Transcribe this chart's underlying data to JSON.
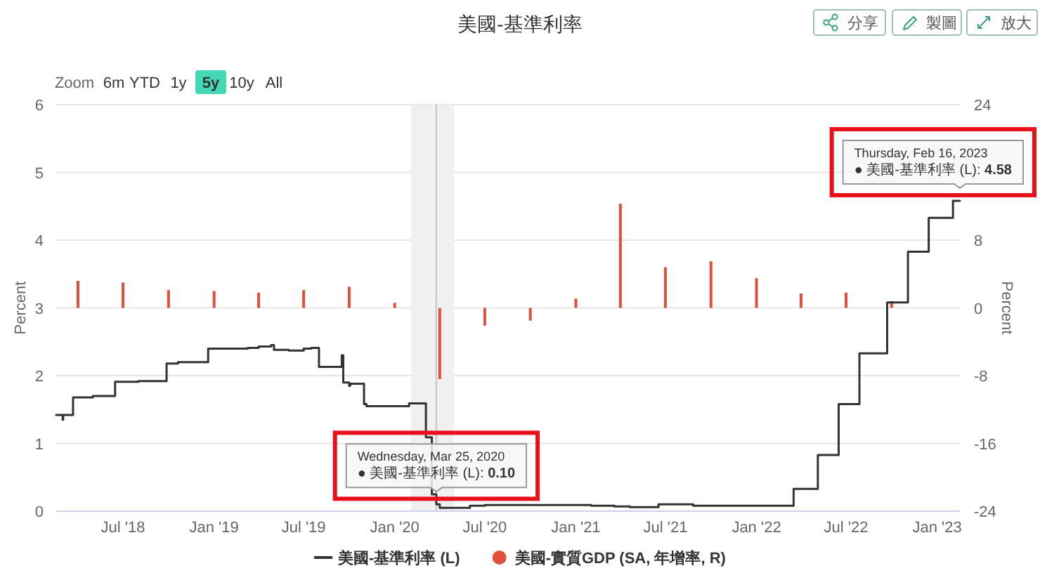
{
  "chart_data": {
    "type": "step",
    "title": "美國-基準利率",
    "ylabel": "Percent",
    "y2label": "Percent",
    "annotations": [
      {
        "text": "Wednesday, Mar 25, 2020\n● 美國-基準利率 (L): 0.10",
        "x": "2020-03-25",
        "y": 0.1
      },
      {
        "text": "Thursday, Feb 16, 2023\n● 美國-基準利率 (L): 4.58",
        "x": "2023-02-16",
        "y": 4.58
      },
      "Zoom",
      "6m",
      "YTD",
      "1y",
      "5y",
      "10y",
      "All",
      "分享",
      "製圖",
      "放大"
    ],
    "xlim": [
      "2018-02-16",
      "2023-02-16"
    ],
    "xticks": [
      {
        "value": "2018-07-01",
        "label": "Jul '18"
      },
      {
        "value": "2019-01-01",
        "label": "Jan '19"
      },
      {
        "value": "2019-07-01",
        "label": "Jul '19"
      },
      {
        "value": "2020-01-01",
        "label": "Jan '20"
      },
      {
        "value": "2020-07-01",
        "label": "Jul '20"
      },
      {
        "value": "2021-01-01",
        "label": "Jan '21"
      },
      {
        "value": "2021-07-01",
        "label": "Jul '21"
      },
      {
        "value": "2022-01-01",
        "label": "Jan '22"
      },
      {
        "value": "2022-07-01",
        "label": "Jul '22"
      },
      {
        "value": "2023-01-01",
        "label": "Jan '23"
      }
    ],
    "ylim": [
      0,
      6
    ],
    "yticks": [
      0,
      1,
      2,
      3,
      4,
      5,
      6
    ],
    "y2lim": [
      -24,
      24
    ],
    "y2ticks": [
      -24,
      -16,
      -8,
      0,
      8,
      {
        "value": 16,
        "label": null
      },
      24
    ],
    "grid": "y",
    "legend": "bottom",
    "bands": [
      {
        "axis": "x",
        "from": "2020-02-03",
        "to": "2020-04-30",
        "color": "#f0f0f0"
      }
    ],
    "ref_lines": [
      {
        "axis": "x",
        "value": "2020-03-25",
        "color": "#c4c4c4"
      }
    ],
    "series": [
      {
        "name": "美國-基準利率 (L)",
        "color": "#333333",
        "x": [
          "2018-02-16",
          "2018-03-01",
          "2018-03-02",
          "2018-03-22",
          "2018-05-01",
          "2018-06-15",
          "2018-08-01",
          "2018-09-27",
          "2018-10-20",
          "2018-12-20",
          "2019-03-10",
          "2019-04-01",
          "2019-04-26",
          "2019-05-02",
          "2019-06-01",
          "2019-07-01",
          "2019-07-16",
          "2019-08-01",
          "2019-09-16",
          "2019-09-19",
          "2019-10-01",
          "2019-10-03",
          "2019-10-31",
          "2019-11-05",
          "2020-01-30",
          "2020-03-04",
          "2020-03-16",
          "2020-03-25",
          "2020-04-01",
          "2020-06-01",
          "2020-07-01",
          "2021-02-01",
          "2021-03-20",
          "2021-04-20",
          "2021-06-17",
          "2021-08-26",
          "2022-03-17",
          "2022-05-05",
          "2022-06-16",
          "2022-07-28",
          "2022-09-22",
          "2022-11-03",
          "2022-12-15",
          "2023-02-02",
          "2023-02-16"
        ],
        "values": [
          1.42,
          1.35,
          1.42,
          1.68,
          1.7,
          1.91,
          1.92,
          2.18,
          2.2,
          2.4,
          2.41,
          2.43,
          2.45,
          2.38,
          2.37,
          2.4,
          2.41,
          2.13,
          2.3,
          1.9,
          1.85,
          1.88,
          1.58,
          1.55,
          1.59,
          1.09,
          0.25,
          0.1,
          0.05,
          0.08,
          0.09,
          0.08,
          0.07,
          0.06,
          0.1,
          0.08,
          0.33,
          0.83,
          1.58,
          2.33,
          3.08,
          3.83,
          4.33,
          4.58,
          4.58
        ]
      },
      {
        "name": "美國-實質GDP (SA, 年增率, R)",
        "type": "bar",
        "axis": "y2",
        "color": "#e0503c",
        "x": [
          "2018-04-01",
          "2018-07-01",
          "2018-10-01",
          "2019-01-01",
          "2019-04-01",
          "2019-07-01",
          "2019-10-01",
          "2020-01-01",
          "2020-04-01",
          "2020-07-01",
          "2020-10-01",
          "2021-01-01",
          "2021-04-01",
          "2021-07-01",
          "2021-10-01",
          "2022-01-01",
          "2022-04-01",
          "2022-07-01",
          "2022-10-01"
        ],
        "values": [
          3.2,
          3.0,
          2.1,
          2.0,
          1.8,
          2.1,
          2.5,
          0.6,
          -8.4,
          -2.1,
          -1.5,
          1.1,
          12.3,
          4.8,
          5.5,
          3.5,
          1.7,
          1.8,
          0.8
        ]
      }
    ]
  }
}
